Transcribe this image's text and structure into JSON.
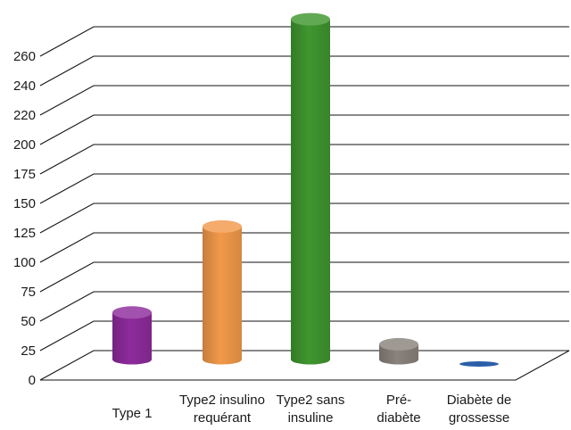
{
  "chart_data": {
    "type": "bar",
    "style": "3d-cylinder",
    "categories": [
      [
        "Type 1"
      ],
      [
        "Type2 insulino",
        "requérant"
      ],
      [
        "Type2 sans",
        "insuline"
      ],
      [
        "Pré-",
        "diabète"
      ],
      [
        "Diabète de",
        "grossesse"
      ]
    ],
    "values": [
      46,
      119,
      276,
      19,
      2
    ],
    "colors": [
      "#8e2b9c",
      "#f2994a",
      "#3f962f",
      "#8a827c",
      "#2a5fa8"
    ],
    "yticks": [
      "0",
      "25",
      "50",
      "75",
      "100",
      "125",
      "150",
      "175",
      "200",
      "220",
      "240",
      "260"
    ],
    "title": "",
    "xlabel": "",
    "ylabel": "",
    "grid": true,
    "legend": "none"
  }
}
